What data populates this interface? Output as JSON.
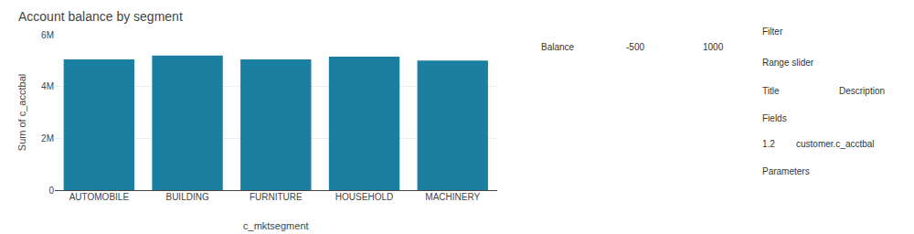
{
  "chart_data": {
    "type": "bar",
    "title": "Account balance by segment",
    "categories": [
      "AUTOMOBILE",
      "BUILDING",
      "FURNITURE",
      "HOUSEHOLD",
      "MACHINERY"
    ],
    "values": [
      5050000,
      5200000,
      5050000,
      5150000,
      5000000
    ],
    "color": "#1a7fa0",
    "xlabel": "c_mktsegment",
    "ylabel": "Sum of c_acctbal",
    "ylim": [
      0,
      6000000
    ],
    "yticks": [
      0,
      {
        "value": 2000000,
        "label": "2M"
      },
      {
        "value": 4000000,
        "label": "4M"
      },
      {
        "value": 6000000,
        "label": "6M"
      }
    ],
    "grid": true,
    "annotations": [
      "Balance",
      "-500",
      "1000",
      "Filter",
      "Range slider",
      "Title",
      "Description",
      "Fields",
      "1.2",
      "customer.c_acctbal",
      "Parameters"
    ]
  }
}
